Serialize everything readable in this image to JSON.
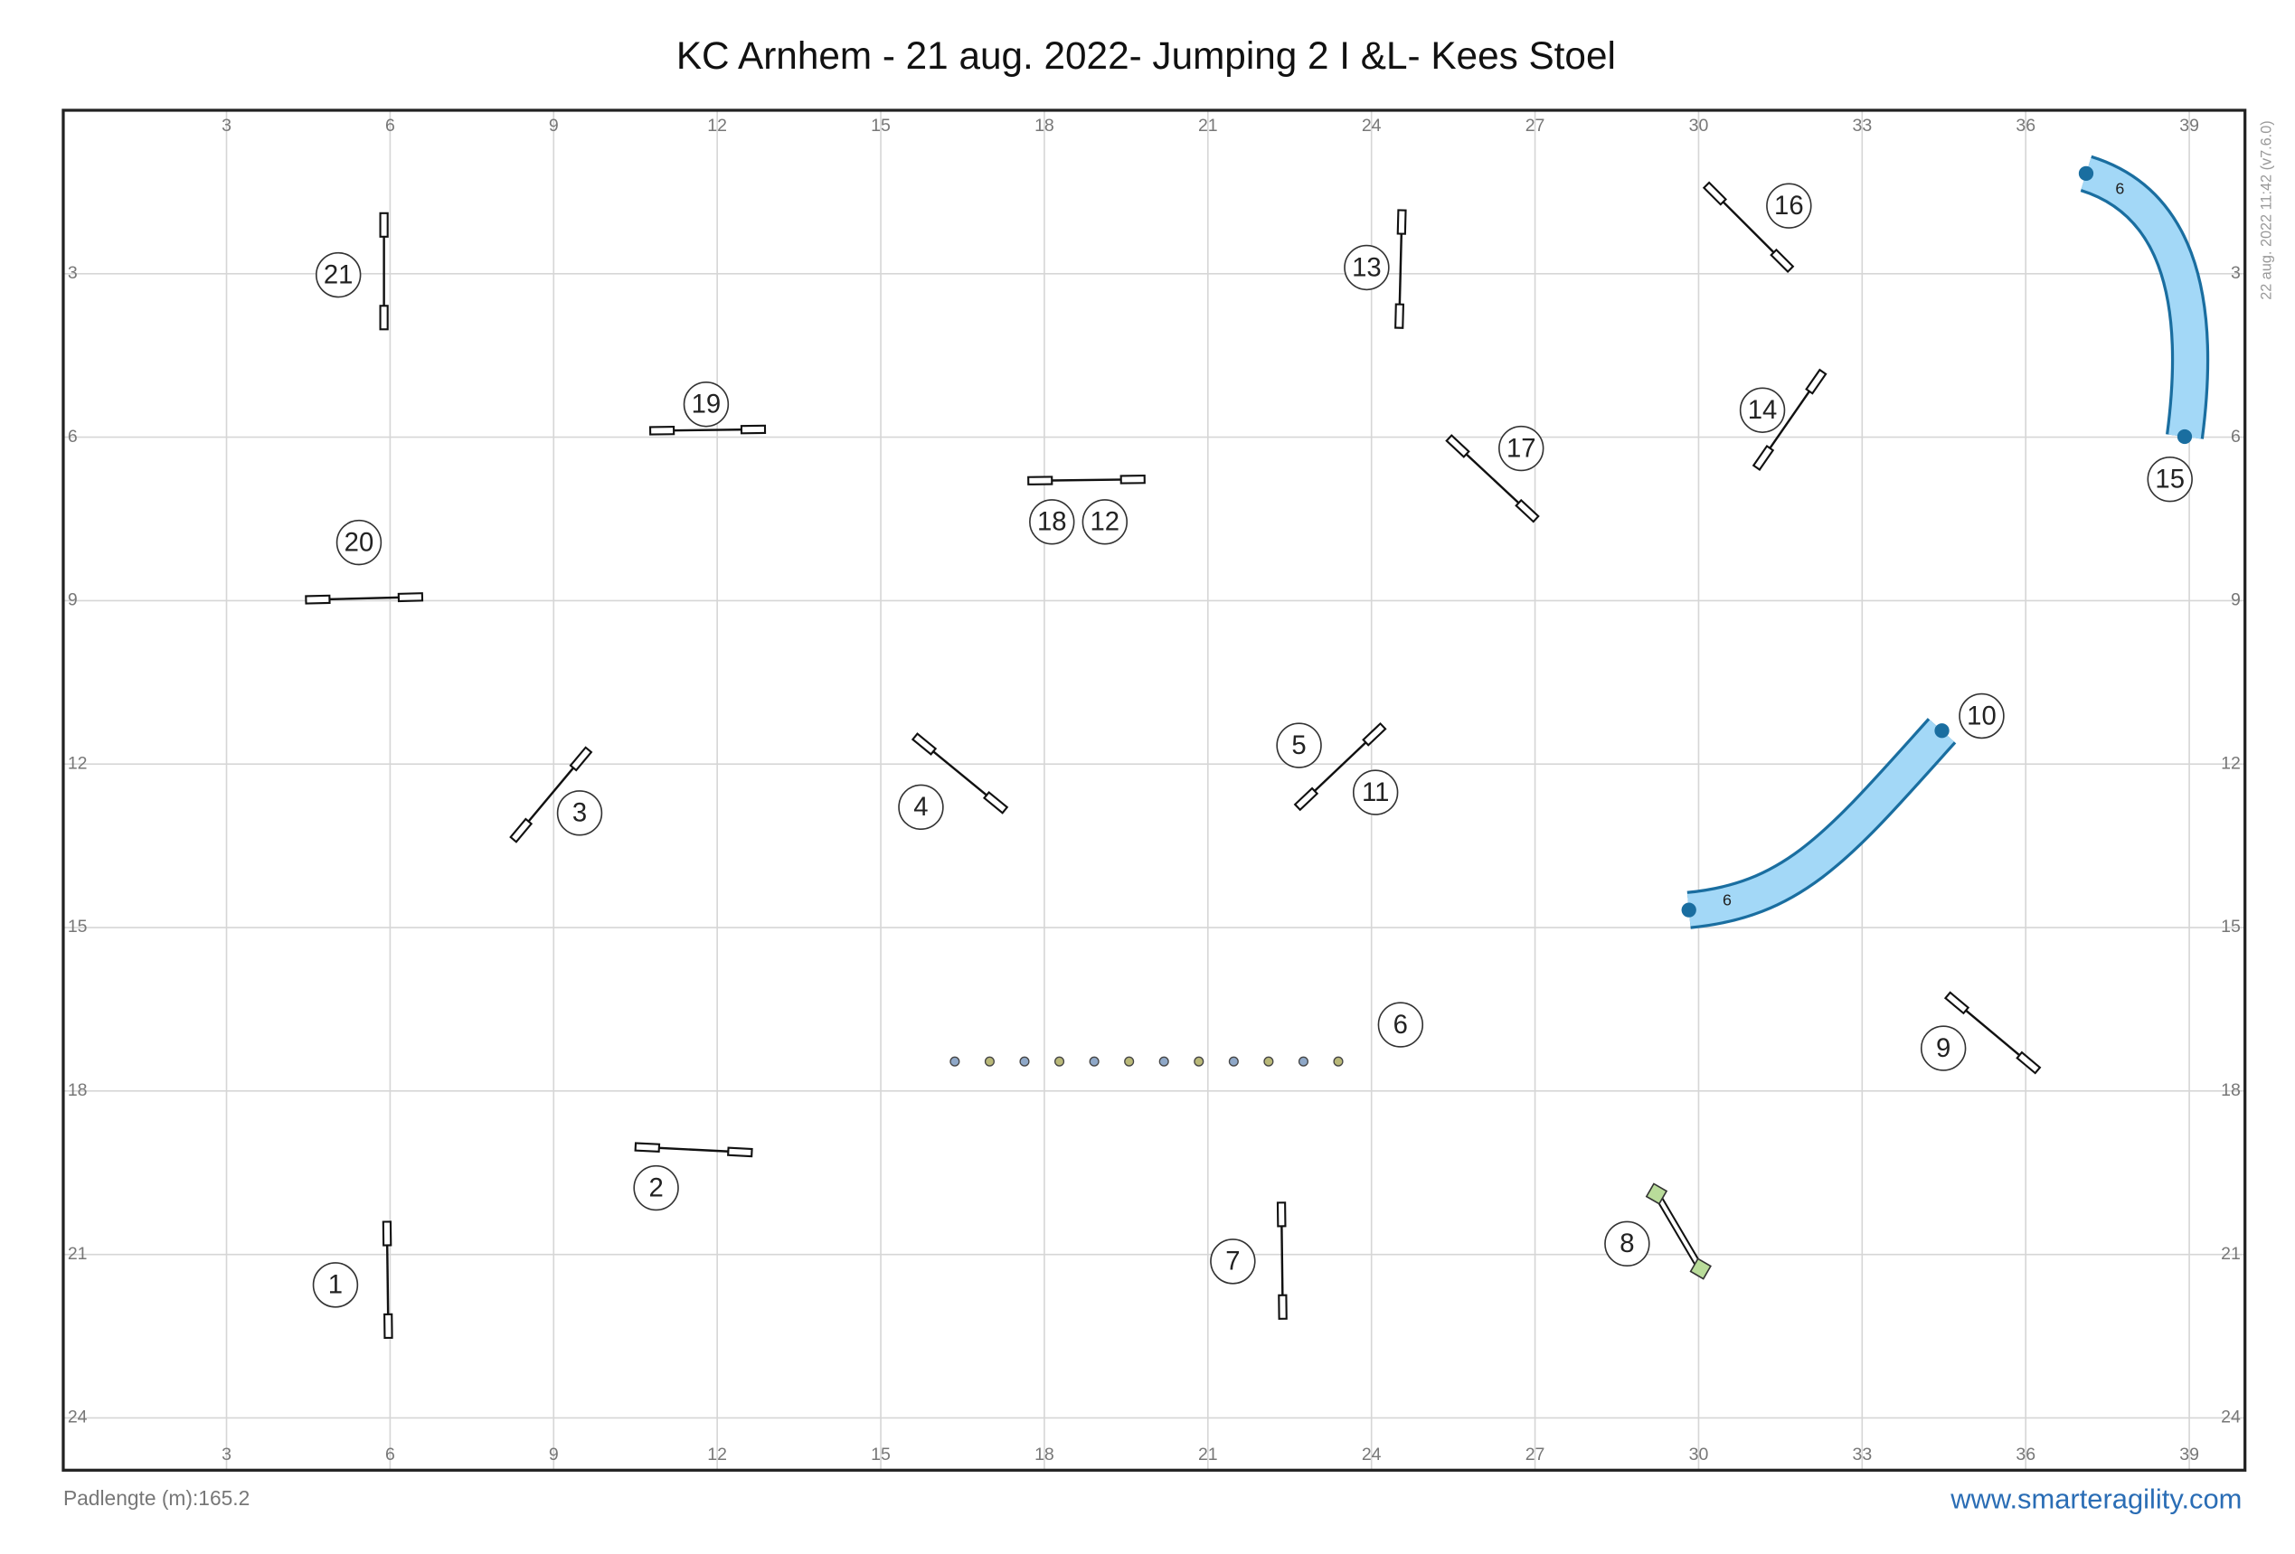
{
  "header": {
    "title": "KC Arnhem - 21 aug. 2022- Jumping 2 I &L- Kees Stoel"
  },
  "axes": {
    "x_ticks": [
      3,
      6,
      9,
      12,
      15,
      18,
      21,
      24,
      27,
      30,
      33,
      36,
      39
    ],
    "y_ticks": [
      3,
      6,
      9,
      12,
      15,
      18,
      21,
      24
    ]
  },
  "course_numbers": [
    "1",
    "2",
    "3",
    "4",
    "5",
    "6",
    "7",
    "8",
    "9",
    "10",
    "11",
    "12",
    "13",
    "14",
    "15",
    "16",
    "17",
    "18",
    "19",
    "20",
    "21"
  ],
  "tunnel_labels": [
    "6",
    "6"
  ],
  "timestamp": "22 aug. 2022 11:42  (v7.6.0)",
  "footer": {
    "path_length": "Padlengte (m):165.2",
    "website": "www.smarteragility.com"
  }
}
